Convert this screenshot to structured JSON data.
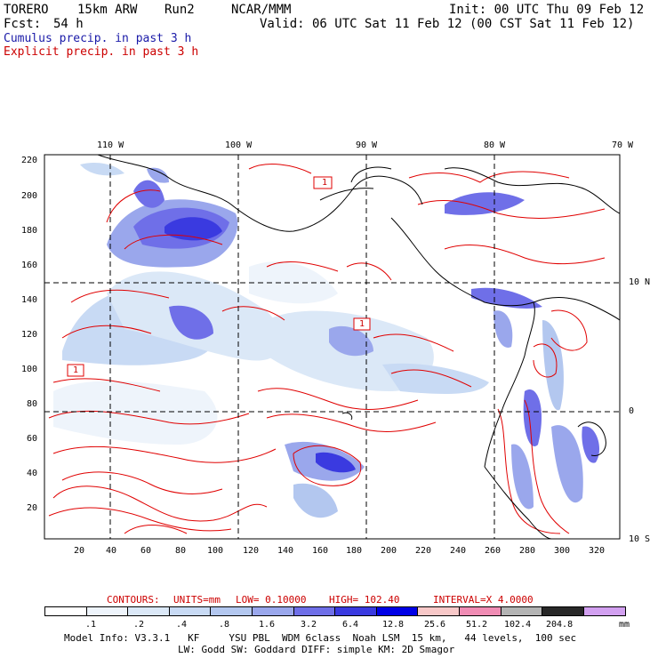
{
  "header": {
    "model": "TORERO",
    "res": "15km ARW",
    "run": "Run2",
    "org": "NCAR/MMM",
    "init": "Init: 00 UTC Thu 09 Feb 12",
    "fcst_label": "Fcst:",
    "fcst_value": "54 h",
    "valid": "Valid: 06 UTC Sat 11 Feb 12 (00 CST Sat 11 Feb 12)",
    "field1": "Cumulus precip. in past 3 h",
    "field2": "Explicit precip. in past 3 h"
  },
  "map": {
    "lon_labels": [
      "110 W",
      "100 W",
      "90 W",
      "80 W",
      "70 W"
    ],
    "lat_labels": [
      "10 N",
      "0",
      "10 S"
    ],
    "y_ticks": [
      "220",
      "200",
      "180",
      "160",
      "140",
      "120",
      "100",
      "80",
      "60",
      "40",
      "20"
    ],
    "x_ticks": [
      "20",
      "40",
      "60",
      "80",
      "100",
      "120",
      "140",
      "160",
      "180",
      "200",
      "220",
      "240",
      "260",
      "280",
      "300",
      "320"
    ],
    "marker_label": "1",
    "colors": {
      "explicit": "#e00000",
      "coast": "#000000",
      "grid": "#000000"
    }
  },
  "contours": {
    "label": "CONTOURS:",
    "units": "UNITS=mm",
    "low": "LOW= 0.10000",
    "high": "HIGH= 102.40",
    "interval": "INTERVAL=X 4.0000"
  },
  "colorbar": {
    "labels": [
      ".1",
      ".2",
      ".4",
      ".8",
      "1.6",
      "3.2",
      "6.4",
      "12.8",
      "25.6",
      "51.2",
      "102.4",
      "204.8"
    ],
    "unit": "mm",
    "colors": [
      "#ffffff",
      "#eef4fb",
      "#dbe8f7",
      "#c8daf4",
      "#b3c7ef",
      "#9aa7ec",
      "#6f6fe8",
      "#3a3ae0",
      "#0000e6",
      "#f8c8c8",
      "#f08cb4",
      "#b4b4b4",
      "#282828",
      "#d2a0f0"
    ]
  },
  "footer": {
    "line1": "Model Info: V3.3.1   KF     YSU PBL  WDM 6class  Noah LSM  15 km,   44 levels,  100 sec",
    "line2": "LW: Godd SW: Goddard DIFF: simple KM: 2D Smagor"
  }
}
